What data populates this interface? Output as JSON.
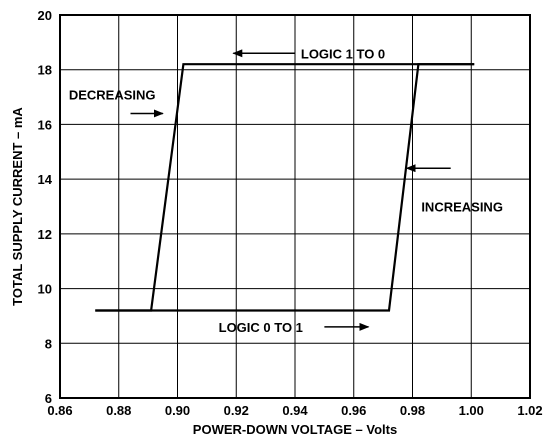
{
  "chart_data": {
    "type": "line",
    "xlabel": "POWER-DOWN VOLTAGE – Volts",
    "ylabel": "TOTAL SUPPLY CURRENT – mA",
    "xlim": [
      0.86,
      1.02
    ],
    "ylim": [
      6,
      20
    ],
    "grid": true,
    "x_ticks": [
      "0.86",
      "0.88",
      "0.90",
      "0.92",
      "0.94",
      "0.96",
      "0.98",
      "1.00",
      "1.02"
    ],
    "y_ticks": [
      "6",
      "8",
      "10",
      "12",
      "14",
      "16",
      "18",
      "20"
    ],
    "series": [
      {
        "x": [
          0.872,
          0.891,
          0.902,
          1.001
        ],
        "y": [
          9.2,
          9.2,
          18.2,
          18.2
        ]
      },
      {
        "x": [
          0.872,
          0.972,
          0.982,
          1.001
        ],
        "y": [
          9.2,
          9.2,
          18.2,
          18.2
        ]
      }
    ],
    "annotations": [
      {
        "text": "LOGIC 1 TO 0",
        "x": 0.942,
        "y": 18.6,
        "arrow": {
          "from": [
            0.94,
            18.6
          ],
          "to": [
            0.919,
            18.6
          ]
        }
      },
      {
        "text": "DECREASING",
        "x": 0.863,
        "y": 17.1,
        "arrow": {
          "from": [
            0.884,
            16.4
          ],
          "to": [
            0.895,
            16.4
          ]
        }
      },
      {
        "text": "INCREASING",
        "x": 0.983,
        "y": 13.0,
        "arrow": {
          "from": [
            0.993,
            14.4
          ],
          "to": [
            0.978,
            14.4
          ]
        }
      },
      {
        "text": "LOGIC 0 TO 1",
        "x": 0.914,
        "y": 8.6,
        "arrow": {
          "from": [
            0.95,
            8.6
          ],
          "to": [
            0.965,
            8.6
          ]
        }
      }
    ]
  }
}
